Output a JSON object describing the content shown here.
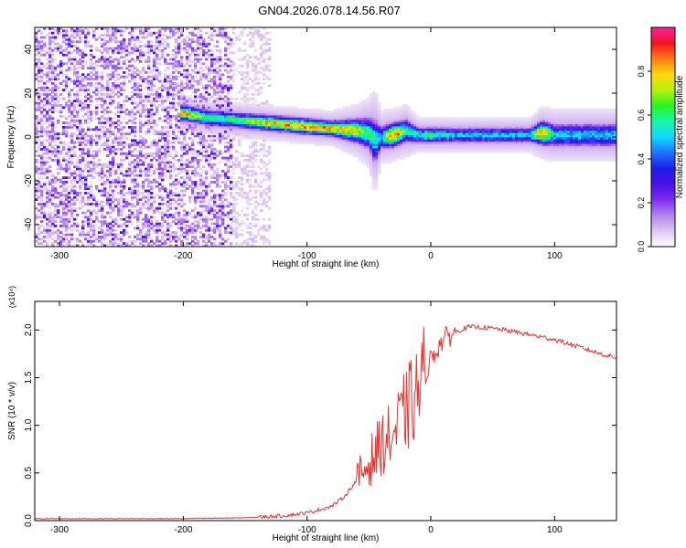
{
  "figure": {
    "title": "GN04.2026.078.14.56.R07"
  },
  "colors": {
    "snr_line": "#e8332f",
    "cmap": [
      "#ffffff",
      "#dcc6f2",
      "#b384ea",
      "#7d2cf0",
      "#4a10e6",
      "#1d1ee8",
      "#1e74ff",
      "#13d7ff",
      "#18f7a8",
      "#2cf220",
      "#b4f20f",
      "#ffd80a",
      "#ff7a12",
      "#ee1520",
      "#ff1fa8"
    ]
  },
  "chart_data": [
    {
      "type": "heatmap",
      "title": "GN04.2026.078.14.56.R07",
      "xlabel": "Height of straight line (km)",
      "ylabel": "Frequency (Hz)",
      "xlim": [
        -320,
        150
      ],
      "ylim": [
        -50,
        50
      ],
      "xticks": [
        "-300",
        "-200",
        "-100",
        "0",
        "100"
      ],
      "yticks": [
        "-40",
        "-20",
        "0",
        "20",
        "40"
      ],
      "colorbar": {
        "label": "Normalized spectral amplitude",
        "range": [
          0,
          1
        ],
        "ticks": [
          "0.0",
          "0.2",
          "0.4",
          "0.6",
          "0.8"
        ]
      },
      "noise_region": {
        "x": [
          -320,
          -130
        ],
        "level": 0.2
      },
      "ridge": {
        "x": [
          -200,
          -180,
          -160,
          -140,
          -120,
          -100,
          -80,
          -60,
          -50,
          -45,
          -40,
          -30,
          -20,
          -10,
          0,
          20,
          40,
          60,
          80,
          90,
          100,
          120,
          150
        ],
        "freq": [
          11,
          9,
          8,
          7,
          6,
          5,
          4,
          3,
          2,
          -2,
          0,
          1,
          3,
          1,
          1,
          1,
          1,
          1,
          1,
          2,
          1,
          1,
          1
        ],
        "width": [
          2,
          2,
          2,
          2,
          2,
          2,
          2,
          3,
          4,
          6,
          3,
          3,
          3,
          2,
          2,
          2,
          2,
          2,
          2,
          3,
          3,
          3,
          3
        ],
        "peak": [
          0.8,
          0.6,
          0.6,
          0.75,
          0.8,
          0.85,
          0.8,
          0.8,
          0.6,
          0.55,
          0.5,
          0.9,
          0.6,
          0.55,
          0.6,
          0.5,
          0.5,
          0.5,
          0.5,
          0.9,
          0.5,
          0.5,
          0.5
        ]
      }
    },
    {
      "type": "line",
      "xlabel": "Height of straight line (km)",
      "ylabel": "SNR (10 * v/v)",
      "ymultiplier": "(x10⁴)",
      "xlim": [
        -320,
        150
      ],
      "ylim": [
        0,
        2.3
      ],
      "xticks": [
        "-300",
        "-200",
        "-100",
        "0",
        "100"
      ],
      "yticks": [
        "0.0",
        "0.5",
        "1.0",
        "1.5",
        "2.0"
      ],
      "series": [
        {
          "x": [
            -320,
            -250,
            -200,
            -150,
            -120,
            -100,
            -80,
            -70,
            -60,
            -50,
            -40,
            -30,
            -20,
            -10,
            0,
            10,
            20,
            30,
            40,
            60,
            80,
            100,
            120,
            140,
            150
          ],
          "y": [
            0.02,
            0.02,
            0.02,
            0.03,
            0.05,
            0.08,
            0.15,
            0.25,
            0.42,
            0.6,
            0.8,
            0.9,
            1.15,
            1.35,
            1.7,
            1.9,
            1.98,
            2.03,
            2.03,
            2.0,
            1.95,
            1.9,
            1.82,
            1.74,
            1.71
          ]
        }
      ]
    }
  ]
}
